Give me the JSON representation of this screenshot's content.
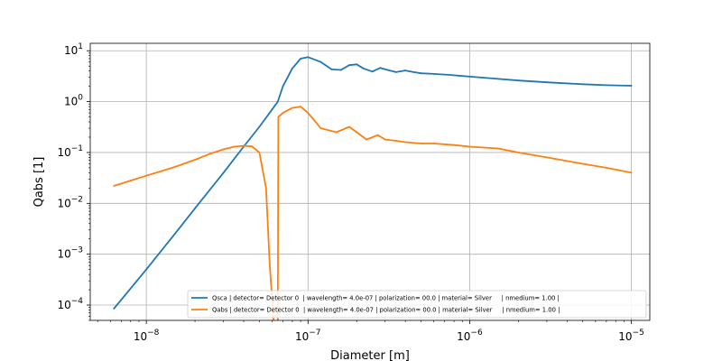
{
  "chart_data": {
    "type": "line",
    "title": "",
    "xlabel": "Diameter  [m]",
    "ylabel": "Qabs [1]",
    "xscale": "log",
    "yscale": "log",
    "xlim": [
      4.5e-09,
      1.3e-05
    ],
    "ylim": [
      5e-05,
      14
    ],
    "grid": true,
    "legend_placement": "lower-right",
    "x_ticks": [
      {
        "value": 1e-08,
        "base": "10",
        "exp": "−8"
      },
      {
        "value": 1e-07,
        "base": "10",
        "exp": "−7"
      },
      {
        "value": 1e-06,
        "base": "10",
        "exp": "−6"
      },
      {
        "value": 1e-05,
        "base": "10",
        "exp": "−5"
      }
    ],
    "y_ticks": [
      {
        "value": 0.0001,
        "base": "10",
        "exp": "−4"
      },
      {
        "value": 0.001,
        "base": "10",
        "exp": "−3"
      },
      {
        "value": 0.01,
        "base": "10",
        "exp": "−2"
      },
      {
        "value": 0.1,
        "base": "10",
        "exp": "−1"
      },
      {
        "value": 1,
        "base": "10",
        "exp": "0"
      },
      {
        "value": 10,
        "base": "10",
        "exp": "1"
      }
    ],
    "series": [
      {
        "name": "Qsca | detector= Detector 0  | wavelength= 4.0e-07 | polarization= 00.0 | material= Silver     | nmedium= 1.00 |",
        "color": "#1f77b4",
        "x": [
          6.3e-09,
          1e-08,
          1.5e-08,
          2e-08,
          3e-08,
          4e-08,
          5e-08,
          6e-08,
          6.5e-08,
          7e-08,
          8e-08,
          9e-08,
          1e-07,
          1.2e-07,
          1.4e-07,
          1.6e-07,
          1.8e-07,
          2e-07,
          2.2e-07,
          2.5e-07,
          2.8e-07,
          3.1e-07,
          3.5e-07,
          4e-07,
          4.5e-07,
          5e-07,
          6e-07,
          7e-07,
          8e-07,
          1e-06,
          1.5e-06,
          2e-06,
          3e-06,
          5e-06,
          7e-06,
          1e-05
        ],
        "y": [
          8.5e-05,
          0.0005,
          0.0025,
          0.008,
          0.04,
          0.13,
          0.32,
          0.7,
          1.0,
          2.0,
          4.5,
          7.0,
          7.5,
          6.0,
          4.3,
          4.2,
          5.2,
          5.4,
          4.5,
          3.9,
          4.6,
          4.2,
          3.8,
          4.1,
          3.8,
          3.6,
          3.5,
          3.4,
          3.3,
          3.1,
          2.8,
          2.6,
          2.4,
          2.2,
          2.1,
          2.05
        ]
      },
      {
        "name": "Qabs | detector= Detector 0  | wavelength= 4.0e-07 | polarization= 00.0 | material= Silver     | nmedium= 1.00 |",
        "color": "#ff7f0e",
        "x": [
          6.3e-09,
          8e-09,
          1e-08,
          1.5e-08,
          2e-08,
          2.5e-08,
          3e-08,
          3.5e-08,
          4e-08,
          4.5e-08,
          5e-08,
          5.5e-08,
          5.8e-08,
          6.2e-08,
          6.5e-08,
          6.55e-08,
          7e-08,
          8e-08,
          9e-08,
          1e-07,
          1.2e-07,
          1.5e-07,
          1.8e-07,
          2e-07,
          2.3e-07,
          2.7e-07,
          3e-07,
          3.5e-07,
          4e-07,
          5e-07,
          6e-07,
          8e-07,
          1e-06,
          1.5e-06,
          2e-06,
          3e-06,
          5e-06,
          7e-06,
          1e-05
        ],
        "y": [
          0.022,
          0.028,
          0.035,
          0.052,
          0.072,
          0.095,
          0.115,
          0.13,
          0.135,
          0.132,
          0.1,
          0.02,
          0.0006,
          3e-05,
          3e-05,
          0.5,
          0.6,
          0.75,
          0.8,
          0.6,
          0.3,
          0.25,
          0.32,
          0.25,
          0.18,
          0.22,
          0.18,
          0.17,
          0.16,
          0.15,
          0.15,
          0.14,
          0.13,
          0.12,
          0.1,
          0.08,
          0.06,
          0.05,
          0.04
        ]
      }
    ]
  }
}
